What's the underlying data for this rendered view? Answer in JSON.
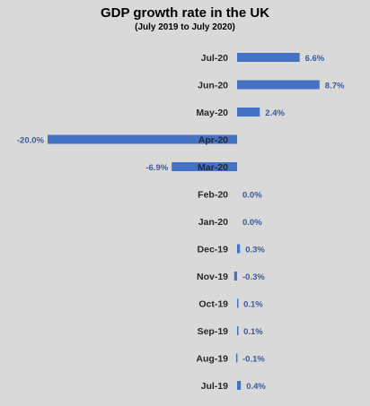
{
  "chart_data": {
    "type": "bar",
    "orientation": "horizontal",
    "title": "GDP growth rate in the UK",
    "subtitle": "(July 2019 to July 2020)",
    "categories": [
      "Jul-20",
      "Jun-20",
      "May-20",
      "Apr-20",
      "Mar-20",
      "Feb-20",
      "Jan-20",
      "Dec-19",
      "Nov-19",
      "Oct-19",
      "Sep-19",
      "Aug-19",
      "Jul-19"
    ],
    "values": [
      6.6,
      8.7,
      2.4,
      -20.0,
      -6.9,
      0.0,
      0.0,
      0.3,
      -0.3,
      0.1,
      0.1,
      -0.1,
      0.4
    ],
    "value_labels": [
      "6.6%",
      "8.7%",
      "2.4%",
      "-20.0%",
      "-6.9%",
      "0.0%",
      "0.0%",
      "0.3%",
      "-0.3%",
      "0.1%",
      "0.1%",
      "-0.1%",
      "0.4%"
    ],
    "bar_color": "#4472c4",
    "background_color": "#d9d9d9",
    "grid": false,
    "legend": "none"
  }
}
